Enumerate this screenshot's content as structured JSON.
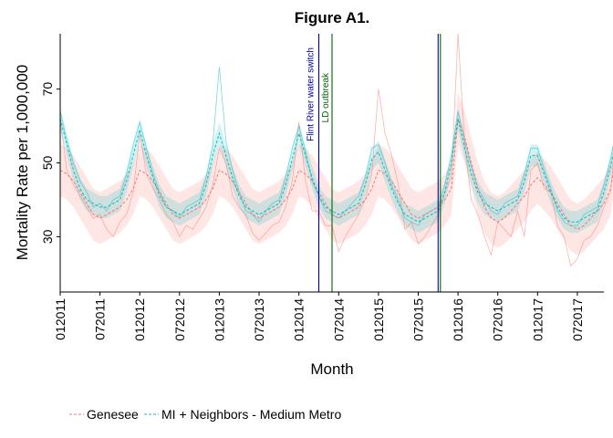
{
  "chart_data": {
    "type": "line",
    "title": "Figure A1.",
    "xlabel": "Month",
    "ylabel": "Mortality Rate per 1,000,000",
    "xlim": [
      "2011-01",
      "2017-11"
    ],
    "ylim": [
      15,
      85
    ],
    "y_ticks": [
      30,
      50,
      70
    ],
    "x_ticks": [
      "012011",
      "072011",
      "012012",
      "072012",
      "012013",
      "072013",
      "012014",
      "072014",
      "012015",
      "072015",
      "012016",
      "072016",
      "012017",
      "072017"
    ],
    "grid": false,
    "legend_position": "bottom",
    "annotations": [
      {
        "label": "Flint River water switch",
        "x": "2014-04",
        "color": "#0000aa"
      },
      {
        "label": "LD outbreak",
        "x": "2014-06",
        "color": "#006400"
      }
    ],
    "vertical_lines": [
      {
        "x": "2014-04",
        "color": "#0000aa"
      },
      {
        "x": "2014-06",
        "color": "#006400"
      },
      {
        "x": "2015-10",
        "color": "#0000aa"
      },
      {
        "x": "2015-10",
        "color": "#006400"
      }
    ],
    "series": [
      {
        "name": "Genesee",
        "color": "#f8766d",
        "start": "2011-01",
        "values": [
          48,
          47,
          45,
          42,
          39,
          36,
          35,
          36,
          37,
          38,
          40,
          43,
          48,
          47,
          45,
          42,
          39,
          36,
          35,
          36,
          37,
          38,
          40,
          43,
          48,
          47,
          45,
          42,
          39,
          36,
          35,
          36,
          37,
          38,
          40,
          43,
          48,
          47,
          45,
          42,
          39,
          36,
          35,
          36,
          37,
          38,
          40,
          43,
          48,
          47,
          45,
          42,
          39,
          36,
          35,
          36,
          37,
          38,
          40,
          43,
          62,
          57,
          50,
          43,
          38,
          35,
          34,
          35,
          37,
          39,
          41,
          44,
          46,
          44,
          42,
          39,
          36,
          33,
          32,
          33,
          35,
          37,
          39,
          43,
          54,
          50,
          46,
          42,
          38,
          35,
          33,
          34,
          36,
          37,
          39
        ],
        "lower": [
          41,
          40,
          38,
          35,
          32,
          29,
          28,
          29,
          30,
          31,
          33,
          36,
          41,
          40,
          38,
          35,
          32,
          29,
          28,
          29,
          30,
          31,
          33,
          36,
          41,
          40,
          38,
          35,
          32,
          29,
          28,
          29,
          30,
          31,
          33,
          36,
          41,
          40,
          38,
          35,
          32,
          29,
          28,
          29,
          30,
          31,
          33,
          36,
          41,
          40,
          38,
          35,
          32,
          29,
          28,
          29,
          30,
          31,
          33,
          36,
          55,
          50,
          43,
          36,
          31,
          28,
          27,
          28,
          30,
          32,
          34,
          37,
          39,
          37,
          35,
          32,
          29,
          26,
          25,
          26,
          28,
          30,
          32,
          36,
          47,
          43,
          39,
          35,
          31,
          28,
          26,
          27,
          29,
          30,
          32
        ],
        "upper": [
          55,
          54,
          52,
          49,
          46,
          43,
          42,
          43,
          44,
          45,
          47,
          50,
          55,
          54,
          52,
          49,
          46,
          43,
          42,
          43,
          44,
          45,
          47,
          50,
          55,
          54,
          52,
          49,
          46,
          43,
          42,
          43,
          44,
          45,
          47,
          50,
          55,
          54,
          52,
          49,
          46,
          43,
          42,
          43,
          44,
          45,
          47,
          50,
          55,
          54,
          52,
          49,
          46,
          43,
          42,
          43,
          44,
          45,
          47,
          50,
          69,
          64,
          57,
          50,
          45,
          42,
          41,
          42,
          44,
          46,
          48,
          51,
          53,
          51,
          49,
          46,
          43,
          40,
          39,
          40,
          42,
          44,
          46,
          50,
          61,
          57,
          53,
          49,
          45,
          42,
          40,
          41,
          43,
          44,
          46
        ],
        "observed": [
          62,
          48,
          44,
          41,
          38,
          35,
          36,
          32,
          30,
          34,
          36,
          42,
          58,
          47,
          43,
          40,
          36,
          34,
          30,
          33,
          32,
          35,
          38,
          44,
          54,
          50,
          41,
          38,
          36,
          31,
          29,
          31,
          33,
          34,
          38,
          45,
          61,
          45,
          37,
          37,
          33,
          33,
          26,
          30,
          33,
          36,
          40,
          47,
          70,
          58,
          52,
          44,
          32,
          34,
          28,
          30,
          33,
          36,
          42,
          46,
          85,
          55,
          40,
          36,
          30,
          25,
          34,
          32,
          30,
          37,
          30,
          48,
          50,
          43,
          42,
          33,
          30,
          22,
          24,
          29,
          30,
          33,
          38,
          42,
          62,
          48,
          43,
          41,
          36,
          32,
          28,
          34,
          31,
          34,
          36
        ]
      },
      {
        "name": "MI + Neighbors - Medium Metro",
        "color": "#00bfc4",
        "start": "2011-01",
        "values": [
          62,
          55,
          48,
          43,
          40,
          39,
          38,
          38,
          39,
          40,
          45,
          52,
          59,
          52,
          46,
          41,
          38,
          37,
          36,
          37,
          38,
          39,
          44,
          52,
          58,
          52,
          46,
          41,
          38,
          37,
          36,
          37,
          38,
          39,
          44,
          51,
          58,
          52,
          46,
          41,
          38,
          37,
          36,
          37,
          38,
          39,
          44,
          51,
          53,
          48,
          43,
          39,
          36,
          35,
          34,
          35,
          36,
          37,
          42,
          50,
          62,
          54,
          47,
          42,
          39,
          38,
          37,
          38,
          39,
          40,
          45,
          52,
          52,
          47,
          42,
          38,
          35,
          34,
          34,
          35,
          36,
          37,
          42,
          49,
          57,
          50,
          44,
          40,
          37,
          36,
          35,
          36,
          37,
          38,
          40
        ],
        "lower": [
          59,
          52,
          45,
          40,
          37,
          36,
          35,
          35,
          36,
          37,
          42,
          49,
          56,
          49,
          43,
          38,
          35,
          34,
          33,
          34,
          35,
          36,
          41,
          49,
          55,
          49,
          43,
          38,
          35,
          34,
          33,
          34,
          35,
          36,
          41,
          48,
          55,
          49,
          43,
          38,
          35,
          34,
          33,
          34,
          35,
          36,
          41,
          48,
          50,
          45,
          40,
          36,
          33,
          32,
          31,
          32,
          33,
          34,
          39,
          47,
          59,
          51,
          44,
          39,
          36,
          35,
          34,
          35,
          36,
          37,
          42,
          49,
          49,
          44,
          39,
          35,
          32,
          31,
          31,
          32,
          33,
          34,
          39,
          46,
          54,
          47,
          41,
          37,
          34,
          33,
          32,
          33,
          34,
          35,
          37
        ],
        "upper": [
          65,
          58,
          51,
          46,
          43,
          42,
          41,
          41,
          42,
          43,
          48,
          55,
          62,
          55,
          49,
          44,
          41,
          40,
          39,
          40,
          41,
          42,
          47,
          55,
          61,
          55,
          49,
          44,
          41,
          40,
          39,
          40,
          41,
          42,
          47,
          54,
          61,
          55,
          49,
          44,
          41,
          40,
          39,
          40,
          41,
          42,
          47,
          54,
          56,
          51,
          46,
          42,
          39,
          38,
          37,
          38,
          39,
          40,
          45,
          53,
          65,
          57,
          50,
          45,
          42,
          41,
          40,
          41,
          42,
          43,
          48,
          55,
          55,
          50,
          45,
          41,
          38,
          37,
          37,
          38,
          39,
          40,
          45,
          52,
          60,
          53,
          47,
          43,
          40,
          39,
          38,
          39,
          40,
          41,
          43
        ],
        "observed": [
          64,
          56,
          50,
          45,
          42,
          38,
          39,
          37,
          40,
          41,
          47,
          55,
          61,
          54,
          47,
          42,
          38,
          37,
          35,
          38,
          39,
          40,
          46,
          55,
          76,
          56,
          48,
          42,
          37,
          36,
          34,
          37,
          39,
          40,
          46,
          54,
          60,
          53,
          45,
          41,
          37,
          36,
          35,
          37,
          39,
          41,
          46,
          54,
          55,
          50,
          44,
          40,
          35,
          34,
          33,
          36,
          37,
          38,
          44,
          52,
          64,
          56,
          49,
          43,
          40,
          37,
          36,
          39,
          40,
          41,
          47,
          54,
          54,
          48,
          43,
          37,
          34,
          33,
          33,
          36,
          37,
          38,
          44,
          51,
          60,
          52,
          46,
          41,
          37,
          35,
          34,
          37,
          38,
          39,
          42
        ]
      }
    ]
  }
}
